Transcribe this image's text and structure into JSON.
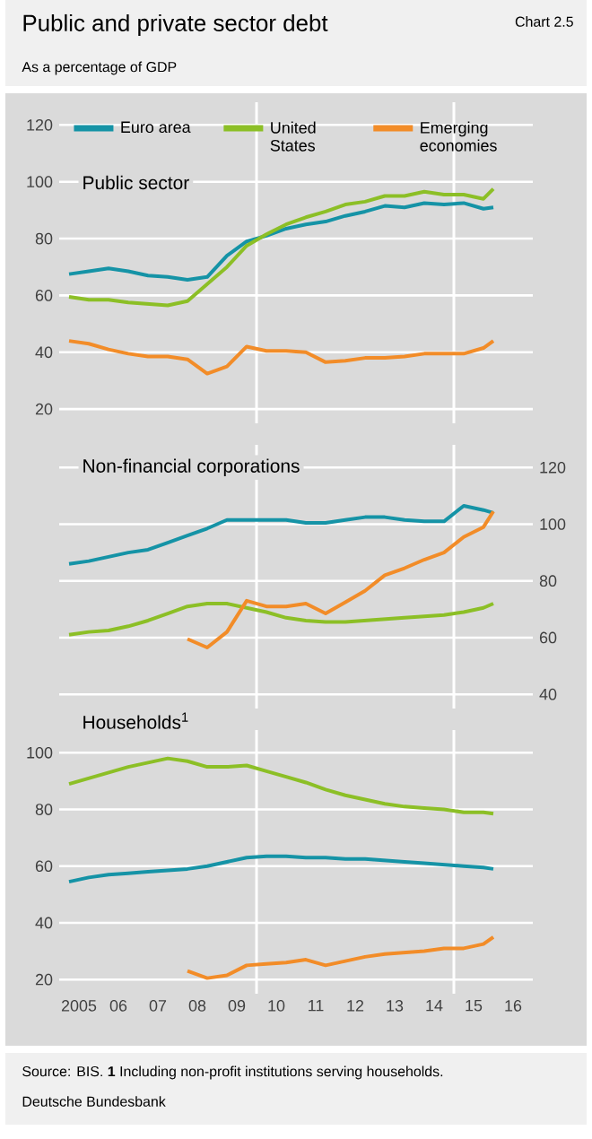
{
  "chart_data": [
    {
      "type": "line",
      "title": "Public sector",
      "annotations": [
        "Public and private sector debt",
        "Chart 2.5",
        "As a percentage of GDP"
      ],
      "x": [
        "2005-04",
        "2005-10",
        "2006-04",
        "2006-10",
        "2007-04",
        "2007-10",
        "2008-04",
        "2008-10",
        "2009-04",
        "2009-10",
        "2010-04",
        "2010-10",
        "2011-04",
        "2011-10",
        "2012-04",
        "2012-10",
        "2013-04",
        "2013-10",
        "2014-04",
        "2014-10",
        "2015-04",
        "2015-10",
        "2016-01"
      ],
      "xlim": [
        "2005-01",
        "2017-01"
      ],
      "ylim": [
        15,
        128
      ],
      "yticks": [
        20,
        40,
        60,
        80,
        100,
        120
      ],
      "tick_labels": "y",
      "grid": "y",
      "legend": "top",
      "ref_lines": [
        {
          "axis": "x",
          "value": "2010-01",
          "color": "#ffffff"
        },
        {
          "axis": "x",
          "value": "2015-01",
          "color": "#ffffff"
        }
      ],
      "series": [
        {
          "name": "Euro area",
          "color": "#1593a6",
          "values": [
            67.5,
            68.5,
            69.5,
            68.5,
            67,
            66.5,
            65.5,
            66.5,
            74,
            79,
            81,
            83.5,
            85,
            86,
            88,
            89.5,
            91.5,
            91,
            92.5,
            92,
            92.5,
            90.5,
            91
          ]
        },
        {
          "name": "United States",
          "color": "#8cbf26",
          "values": [
            59.5,
            58.5,
            58.5,
            57.5,
            57,
            56.5,
            58,
            64,
            70,
            77.5,
            81.5,
            85,
            87.5,
            89.5,
            92,
            93,
            95,
            95,
            96.5,
            95.5,
            95.5,
            94,
            97.5
          ]
        },
        {
          "name": "Emerging economies",
          "color": "#f28c28",
          "values": [
            44,
            43,
            41,
            39.5,
            38.5,
            38.5,
            37.5,
            32.5,
            35,
            42,
            40.5,
            40.5,
            40,
            36.5,
            37,
            38,
            38,
            38.5,
            39.5,
            39.5,
            39.5,
            41.5,
            44
          ]
        }
      ]
    },
    {
      "type": "line",
      "title": "Non-financial corporations",
      "x": [
        "2005-04",
        "2005-10",
        "2006-04",
        "2006-10",
        "2007-04",
        "2007-10",
        "2008-04",
        "2008-10",
        "2009-04",
        "2009-10",
        "2010-04",
        "2010-10",
        "2011-04",
        "2011-10",
        "2012-04",
        "2012-10",
        "2013-04",
        "2013-10",
        "2014-04",
        "2014-10",
        "2015-04",
        "2015-10",
        "2016-01"
      ],
      "xlim": [
        "2005-01",
        "2017-01"
      ],
      "ylim": [
        35,
        128
      ],
      "yticks": [
        40,
        60,
        80,
        100,
        120
      ],
      "tick_labels": "y",
      "grid": "y",
      "ref_lines": [
        {
          "axis": "x",
          "value": "2010-01",
          "color": "#ffffff"
        },
        {
          "axis": "x",
          "value": "2015-01",
          "color": "#ffffff"
        }
      ],
      "series": [
        {
          "color": "#1593a6",
          "values": [
            86,
            87,
            88.5,
            90,
            91,
            93.5,
            96,
            98.5,
            101.5,
            101.5,
            101.5,
            101.5,
            100.5,
            100.5,
            101.5,
            102.5,
            102.5,
            101.5,
            101,
            101,
            106.5,
            105,
            104
          ]
        },
        {
          "color": "#8cbf26",
          "values": [
            61,
            62,
            62.5,
            64,
            66,
            68.5,
            71,
            72,
            72,
            70.5,
            69,
            67,
            66,
            65.5,
            65.5,
            66,
            66.5,
            67,
            67.5,
            68,
            69,
            70.5,
            72
          ]
        },
        {
          "color": "#f28c28",
          "values": [
            null,
            null,
            null,
            null,
            null,
            null,
            59.5,
            56.5,
            62,
            73,
            71,
            71,
            72,
            68.5,
            72.5,
            76.5,
            82,
            84.5,
            87.5,
            90,
            95.5,
            99,
            104.5
          ]
        }
      ]
    },
    {
      "type": "line",
      "title": "Households$^{1}$",
      "annotations": [
        "Source: BIS. **1** Including non-profit institutions serving households.",
        "Deutsche Bundesbank"
      ],
      "x": [
        "2005-04",
        "2005-10",
        "2006-04",
        "2006-10",
        "2007-04",
        "2007-10",
        "2008-04",
        "2008-10",
        "2009-04",
        "2009-10",
        "2010-04",
        "2010-10",
        "2011-04",
        "2011-10",
        "2012-04",
        "2012-10",
        "2013-04",
        "2013-10",
        "2014-04",
        "2014-10",
        "2015-04",
        "2015-10",
        "2016-01"
      ],
      "xlim": [
        "2005-01",
        "2017-01"
      ],
      "xticks": [
        {
          "value": "2005-07",
          "label": "2005"
        },
        {
          "value": "2006-07",
          "label": "06"
        },
        {
          "value": "2007-07",
          "label": "07"
        },
        {
          "value": "2008-07",
          "label": "08"
        },
        {
          "value": "2009-07",
          "label": "09"
        },
        {
          "value": "2010-07",
          "label": "10"
        },
        {
          "value": "2011-07",
          "label": "11"
        },
        {
          "value": "2012-07",
          "label": "12"
        },
        {
          "value": "2013-07",
          "label": "13"
        },
        {
          "value": "2014-07",
          "label": "14"
        },
        {
          "value": "2015-07",
          "label": "15"
        },
        {
          "value": "2016-07",
          "label": "16"
        }
      ],
      "ylim": [
        15,
        108
      ],
      "yticks": [
        20,
        40,
        60,
        80,
        100
      ],
      "grid": "y",
      "ref_lines": [
        {
          "axis": "x",
          "value": "2010-01",
          "color": "#ffffff"
        },
        {
          "axis": "x",
          "value": "2015-01",
          "color": "#ffffff"
        }
      ],
      "series": [
        {
          "color": "#1593a6",
          "values": [
            54.5,
            56,
            57,
            57.5,
            58,
            58.5,
            59,
            60,
            61.5,
            63,
            63.5,
            63.5,
            63,
            63,
            62.5,
            62.5,
            62,
            61.5,
            61,
            60.5,
            60,
            59.5,
            59
          ]
        },
        {
          "color": "#8cbf26",
          "values": [
            89,
            91,
            93,
            95,
            96.5,
            98,
            97,
            95,
            95,
            95.5,
            93.5,
            91.5,
            89.5,
            87,
            85,
            83.5,
            82,
            81,
            80.5,
            80,
            79,
            79,
            78.5
          ]
        },
        {
          "color": "#f28c28",
          "values": [
            null,
            null,
            null,
            null,
            null,
            null,
            23,
            20.5,
            21.5,
            25,
            25.5,
            26,
            27,
            25,
            26.5,
            28,
            29,
            29.5,
            30,
            31,
            31,
            32.5,
            35
          ]
        }
      ]
    }
  ]
}
